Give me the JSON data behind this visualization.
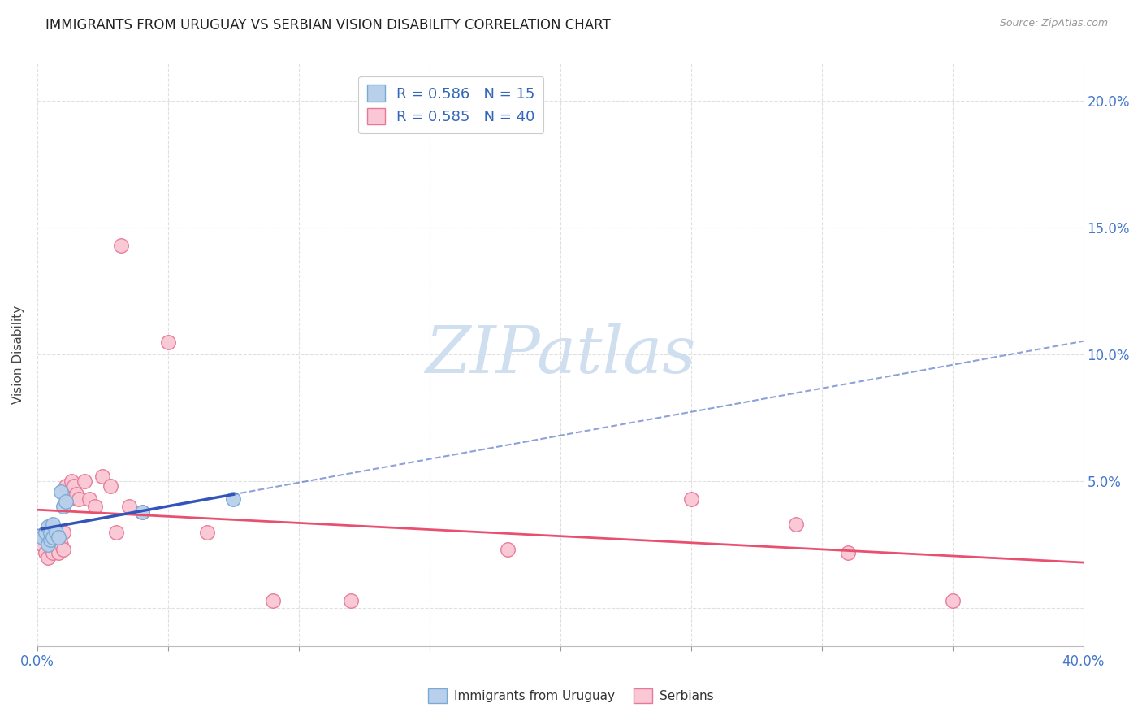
{
  "title": "IMMIGRANTS FROM URUGUAY VS SERBIAN VISION DISABILITY CORRELATION CHART",
  "source": "Source: ZipAtlas.com",
  "ylabel": "Vision Disability",
  "xlim": [
    0.0,
    0.4
  ],
  "ylim": [
    -0.015,
    0.215
  ],
  "xticks": [
    0.0,
    0.05,
    0.1,
    0.15,
    0.2,
    0.25,
    0.3,
    0.35,
    0.4
  ],
  "xtick_labels": [
    "0.0%",
    "",
    "",
    "",
    "",
    "",
    "",
    "",
    "40.0%"
  ],
  "yticks": [
    0.0,
    0.05,
    0.1,
    0.15,
    0.2
  ],
  "ytick_labels_right": [
    "",
    "5.0%",
    "10.0%",
    "15.0%",
    "20.0%"
  ],
  "background_color": "#ffffff",
  "grid_color": "#e0e0e0",
  "uruguay_x": [
    0.002,
    0.003,
    0.004,
    0.004,
    0.005,
    0.005,
    0.006,
    0.006,
    0.007,
    0.008,
    0.009,
    0.01,
    0.011,
    0.04,
    0.075
  ],
  "uruguay_y": [
    0.028,
    0.03,
    0.025,
    0.032,
    0.027,
    0.03,
    0.028,
    0.033,
    0.03,
    0.028,
    0.046,
    0.04,
    0.042,
    0.038,
    0.043
  ],
  "uruguay_color": "#b8d0ec",
  "uruguay_edge_color": "#7aaad4",
  "uruguay_R": 0.586,
  "uruguay_N": 15,
  "serbian_x": [
    0.002,
    0.003,
    0.003,
    0.004,
    0.004,
    0.005,
    0.005,
    0.006,
    0.006,
    0.007,
    0.007,
    0.008,
    0.008,
    0.009,
    0.01,
    0.01,
    0.011,
    0.012,
    0.013,
    0.014,
    0.015,
    0.016,
    0.018,
    0.02,
    0.022,
    0.025,
    0.028,
    0.03,
    0.032,
    0.035,
    0.04,
    0.05,
    0.065,
    0.09,
    0.12,
    0.18,
    0.25,
    0.29,
    0.31,
    0.35
  ],
  "serbian_y": [
    0.025,
    0.022,
    0.028,
    0.02,
    0.03,
    0.025,
    0.032,
    0.022,
    0.028,
    0.025,
    0.03,
    0.022,
    0.028,
    0.025,
    0.03,
    0.023,
    0.048,
    0.043,
    0.05,
    0.048,
    0.045,
    0.043,
    0.05,
    0.043,
    0.04,
    0.052,
    0.048,
    0.03,
    0.143,
    0.04,
    0.038,
    0.105,
    0.03,
    0.003,
    0.003,
    0.023,
    0.043,
    0.033,
    0.022,
    0.003
  ],
  "serbian_color": "#f9c8d4",
  "serbian_edge_color": "#e87898",
  "serbian_R": 0.585,
  "serbian_N": 40,
  "uruguay_trendline_color": "#3355bb",
  "serbian_trendline_color": "#e85070",
  "watermark_text": "ZIPatlas",
  "watermark_color": "#d0dff0",
  "title_fontsize": 12,
  "label_fontsize": 11,
  "tick_fontsize": 12
}
